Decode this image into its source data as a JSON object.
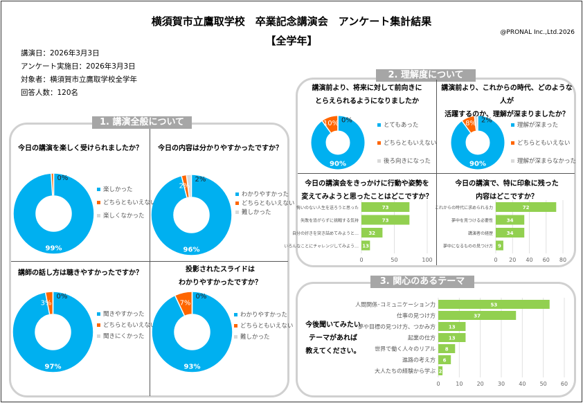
{
  "header": {
    "title": "横須賀市立鷹取学校　卒業記念講演会　アンケート集計結果",
    "subtitle": "【全学年】",
    "copyright": "@PRONAL Inc.,Ltd.2026",
    "info": [
      "講演日：2026年3月3日",
      "アンケート実施日：2026年3月3日",
      "対象者：横須賀市立鷹取学校全学年",
      "回答人数：120名"
    ]
  },
  "colors": {
    "blue": "#00b0f0",
    "orange": "#ff6600",
    "gray": "#d9d9d9",
    "green": "#92d050"
  },
  "sections": {
    "s1": "1. 講演全般について",
    "s2": "2. 理解度について",
    "s3": "3. 関心のあるテーマ"
  },
  "chart_data": [
    {
      "type": "pie",
      "title": "今日の講演を楽しく受けられましたか？",
      "labels": [
        "楽しかった",
        "どちらともいえない",
        "楽しくなかった"
      ],
      "values": [
        99,
        1,
        0
      ],
      "shown": [
        "99%",
        "",
        "0%"
      ]
    },
    {
      "type": "pie",
      "title": "今日の内容は分かりやすかったですか？",
      "labels": [
        "わかりやすかった",
        "どちらともいえない",
        "難しかった"
      ],
      "values": [
        96,
        2,
        2
      ],
      "shown": [
        "96%",
        "2%",
        "2%"
      ]
    },
    {
      "type": "pie",
      "title": "講師の話し方は聴きやすかったですか？",
      "labels": [
        "聞きやすかった",
        "どちらともいえない",
        "聞きにくかった"
      ],
      "values": [
        97,
        3,
        0
      ],
      "shown": [
        "97%",
        "3%",
        "0%"
      ]
    },
    {
      "type": "pie",
      "title": "投影されたスライドは わかりやすかったですか？",
      "labels": [
        "わかりやすかった",
        "どちらともいえない",
        "難しかった"
      ],
      "values": [
        93,
        7,
        0
      ],
      "shown": [
        "93%",
        "7%",
        "0%"
      ]
    },
    {
      "type": "pie",
      "title": "講演前より、将来に対して前向きに とらえられるようになりましたか",
      "labels": [
        "とてもあった",
        "どちらともいえない",
        "後ろ向きになった"
      ],
      "values": [
        90,
        10,
        0
      ],
      "shown": [
        "90%",
        "10%",
        "0%"
      ]
    },
    {
      "type": "pie",
      "title": "講演前より、これからの時代、どのような人が 活躍するのか、理解が深まりましたか？",
      "labels": [
        "理解が深まった",
        "どちらともいえない",
        "理解が深まらなかった"
      ],
      "values": [
        90,
        8,
        2
      ],
      "shown": [
        "90%",
        "8%",
        "2%"
      ]
    },
    {
      "type": "bar",
      "title": "今日の講演会をきっかけに行動や姿勢を 変えてみようと思ったことはどこですか？",
      "categories": [
        "悔いのない人生を送ろうと思った",
        "失敗を恐がらずに挑戦する気持",
        "自分の好きを突き詰めてみようと…",
        "いろんなことにチャレンジしてみよう…"
      ],
      "values": [
        73,
        73,
        32,
        13
      ],
      "xlim": [
        0,
        100
      ],
      "ticks": [
        0,
        50,
        100
      ]
    },
    {
      "type": "bar",
      "title": "今日の講演で、特に印象に残った 内容はどこですか？",
      "categories": [
        "これからの時代に求められる力",
        "夢中を見つける必要性",
        "講演者の経歴",
        "夢中になるものの見つけ方"
      ],
      "values": [
        72,
        34,
        34,
        9
      ],
      "xlim": [
        0,
        80
      ],
      "ticks": [
        0,
        20,
        40,
        60,
        80
      ]
    },
    {
      "type": "bar",
      "title": "今後聞いてみたい テーマがあれば 教えてください。",
      "categories": [
        "人間関係･コミュニケーション力",
        "仕事の見つけ方",
        "夢や目標の見つけ方、つかみ方",
        "起業の仕方",
        "世界で働く人々のリアル",
        "進路の考え方",
        "大人たちの経験から学ぶ"
      ],
      "values": [
        53,
        37,
        13,
        13,
        8,
        6,
        2
      ],
      "xlim": [
        0,
        60
      ],
      "ticks": [
        0,
        10,
        20,
        30,
        40,
        50,
        60
      ]
    }
  ]
}
